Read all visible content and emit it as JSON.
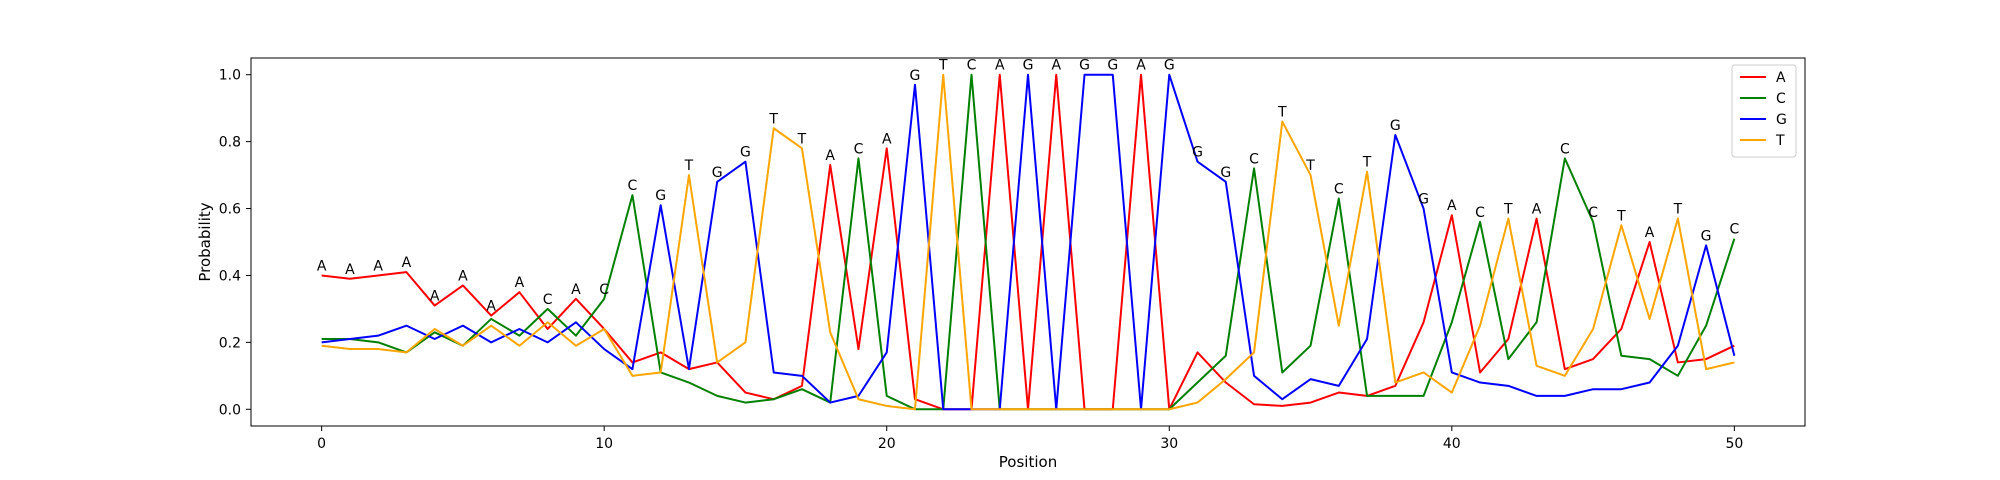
{
  "chart_data": {
    "type": "line",
    "title": "",
    "xlabel": "Position",
    "ylabel": "Probability",
    "xlim": [
      -2.5,
      52.5
    ],
    "ylim": [
      -0.05,
      1.05
    ],
    "xticks": [
      0,
      10,
      20,
      30,
      40,
      50
    ],
    "yticks": [
      0.0,
      0.2,
      0.4,
      0.6,
      0.8,
      1.0
    ],
    "x": [
      0,
      1,
      2,
      3,
      4,
      5,
      6,
      7,
      8,
      9,
      10,
      11,
      12,
      13,
      14,
      15,
      16,
      17,
      18,
      19,
      20,
      21,
      22,
      23,
      24,
      25,
      26,
      27,
      28,
      29,
      30,
      31,
      32,
      33,
      34,
      35,
      36,
      37,
      38,
      39,
      40,
      41,
      42,
      43,
      44,
      45,
      46,
      47,
      48,
      49,
      50
    ],
    "legend": "top-right",
    "series": [
      {
        "name": "A",
        "color": "#ff0000",
        "values": [
          0.4,
          0.39,
          0.4,
          0.41,
          0.31,
          0.37,
          0.28,
          0.35,
          0.24,
          0.33,
          0.24,
          0.14,
          0.17,
          0.12,
          0.14,
          0.05,
          0.03,
          0.07,
          0.73,
          0.18,
          0.78,
          0.03,
          0.0,
          0.0,
          1.0,
          0.0,
          1.0,
          0.0,
          0.0,
          1.0,
          0.0,
          0.17,
          0.08,
          0.015,
          0.01,
          0.02,
          0.05,
          0.04,
          0.07,
          0.26,
          0.58,
          0.11,
          0.21,
          0.57,
          0.12,
          0.15,
          0.24,
          0.5,
          0.14,
          0.15,
          0.19
        ]
      },
      {
        "name": "C",
        "color": "#008000",
        "values": [
          0.21,
          0.21,
          0.2,
          0.17,
          0.23,
          0.19,
          0.27,
          0.22,
          0.3,
          0.22,
          0.33,
          0.64,
          0.11,
          0.08,
          0.04,
          0.02,
          0.03,
          0.06,
          0.02,
          0.75,
          0.04,
          0.0,
          0.0,
          1.0,
          0.0,
          0.0,
          0.0,
          0.0,
          0.0,
          0.0,
          0.0,
          0.08,
          0.16,
          0.72,
          0.11,
          0.19,
          0.63,
          0.04,
          0.04,
          0.04,
          0.26,
          0.56,
          0.15,
          0.26,
          0.75,
          0.56,
          0.16,
          0.15,
          0.1,
          0.25,
          0.51
        ]
      },
      {
        "name": "G",
        "color": "#0000ff",
        "values": [
          0.2,
          0.21,
          0.22,
          0.25,
          0.21,
          0.25,
          0.2,
          0.24,
          0.2,
          0.26,
          0.18,
          0.12,
          0.61,
          0.12,
          0.68,
          0.74,
          0.11,
          0.1,
          0.02,
          0.04,
          0.17,
          0.97,
          0.0,
          0.0,
          0.0,
          1.0,
          0.0,
          1.0,
          1.0,
          0.0,
          1.0,
          0.74,
          0.68,
          0.1,
          0.03,
          0.09,
          0.07,
          0.21,
          0.82,
          0.6,
          0.11,
          0.08,
          0.07,
          0.04,
          0.04,
          0.06,
          0.06,
          0.08,
          0.19,
          0.49,
          0.16
        ]
      },
      {
        "name": "T",
        "color": "#ffa500",
        "values": [
          0.19,
          0.18,
          0.18,
          0.17,
          0.24,
          0.19,
          0.25,
          0.19,
          0.26,
          0.19,
          0.24,
          0.1,
          0.11,
          0.7,
          0.14,
          0.2,
          0.84,
          0.78,
          0.23,
          0.03,
          0.01,
          0.0,
          1.0,
          0.0,
          0.0,
          0.0,
          0.0,
          0.0,
          0.0,
          0.0,
          0.0,
          0.02,
          0.09,
          0.17,
          0.86,
          0.7,
          0.25,
          0.71,
          0.08,
          0.11,
          0.05,
          0.25,
          0.57,
          0.13,
          0.1,
          0.24,
          0.55,
          0.27,
          0.57,
          0.12,
          0.14
        ]
      }
    ],
    "peak_labels": [
      "A",
      "A",
      "A",
      "A",
      "A",
      "A",
      "A",
      "A",
      "C",
      "A",
      "C",
      "C",
      "G",
      "T",
      "G",
      "G",
      "T",
      "T",
      "A",
      "C",
      "A",
      "G",
      "T",
      "C",
      "A",
      "G",
      "A",
      "G",
      "G",
      "A",
      "G",
      "G",
      "G",
      "C",
      "T",
      "T",
      "C",
      "T",
      "G",
      "G",
      "A",
      "C",
      "T",
      "A",
      "C",
      "C",
      "T",
      "A",
      "T",
      "G",
      "C"
    ]
  }
}
